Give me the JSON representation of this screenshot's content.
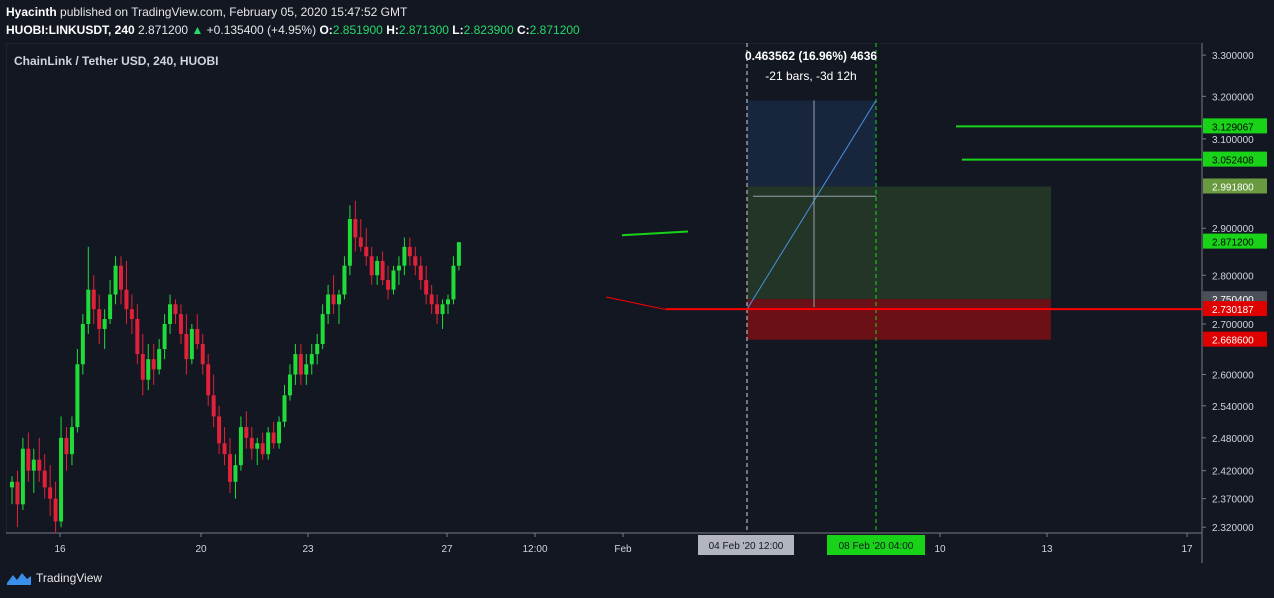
{
  "header": {
    "author": "Hyacinth",
    "published_text": " published on TradingView.com, February 05, 2020 15:47:52 GMT",
    "symbol": "HUOBI:LINKUSDT, 240",
    "last": "2.871200",
    "change_arrow": "▲",
    "change": "+0.135400 (+4.95%)",
    "o_label": "O:",
    "o_value": "2.851900",
    "h_label": "H:",
    "h_value": "2.871300",
    "l_label": "L:",
    "l_value": "2.823900",
    "c_label": "C:",
    "c_value": "2.871200"
  },
  "footer": {
    "brand": "TradingView",
    "logo_icon": "tradingview-logo-icon"
  },
  "colors": {
    "background": "#131722",
    "up": "#26a69a",
    "up_bright": "#1fdc3b",
    "down": "#e0213a",
    "level_green": "#19d319",
    "level_red": "#ff0000"
  },
  "chart_data": {
    "type": "candlestick",
    "title": "ChainLink / Tether USD, 240, HUOBI",
    "ylim": [
      2.31,
      3.33
    ],
    "y_scale": "log",
    "y_ticks": [
      "3.300000",
      "3.200000",
      "3.100000",
      "2.900000",
      "2.800000",
      "2.700000",
      "2.600000",
      "2.540000",
      "2.480000",
      "2.420000",
      "2.370000",
      "2.320000"
    ],
    "x_ticks": [
      "16",
      "20",
      "23",
      "27",
      "12:00",
      "Feb",
      "10",
      "13",
      "17"
    ],
    "x_highlight_labels": [
      "04 Feb '20   12:00",
      "08 Feb '20   04:00"
    ],
    "price_labels": [
      {
        "value": "3.129067",
        "style": "green"
      },
      {
        "value": "3.052408",
        "style": "green"
      },
      {
        "value": "2.991800",
        "style": "olive"
      },
      {
        "value": "2.871200",
        "style": "green"
      },
      {
        "value": "2.750400",
        "style": "gray"
      },
      {
        "value": "2.730187",
        "style": "red"
      },
      {
        "value": "2.668600",
        "style": "red"
      }
    ],
    "measure": {
      "text1": "0.463562 (16.96%) 4636",
      "text2": "-21 bars, -3d 12h",
      "from": 2.73,
      "to": 3.19
    },
    "position_tool": {
      "entry": 2.7504,
      "target": 2.9918,
      "stop": 2.6686,
      "upper": 3.19
    },
    "horizontal_levels": [
      {
        "value": 3.129067,
        "color": "green"
      },
      {
        "value": 3.052408,
        "color": "green"
      },
      {
        "value": 2.730187,
        "color": "red"
      }
    ],
    "candles": [
      [
        2.39,
        2.41,
        2.36,
        2.4
      ],
      [
        2.4,
        2.42,
        2.32,
        2.36
      ],
      [
        2.36,
        2.48,
        2.35,
        2.46
      ],
      [
        2.46,
        2.49,
        2.4,
        2.42
      ],
      [
        2.42,
        2.46,
        2.38,
        2.44
      ],
      [
        2.44,
        2.48,
        2.4,
        2.42
      ],
      [
        2.42,
        2.45,
        2.37,
        2.39
      ],
      [
        2.39,
        2.43,
        2.34,
        2.37
      ],
      [
        2.37,
        2.4,
        2.31,
        2.33
      ],
      [
        2.33,
        2.52,
        2.32,
        2.48
      ],
      [
        2.48,
        2.5,
        2.42,
        2.45
      ],
      [
        2.45,
        2.52,
        2.43,
        2.5
      ],
      [
        2.5,
        2.65,
        2.49,
        2.62
      ],
      [
        2.62,
        2.72,
        2.6,
        2.7
      ],
      [
        2.7,
        2.86,
        2.68,
        2.77
      ],
      [
        2.77,
        2.8,
        2.7,
        2.73
      ],
      [
        2.73,
        2.76,
        2.66,
        2.69
      ],
      [
        2.69,
        2.73,
        2.65,
        2.71
      ],
      [
        2.71,
        2.79,
        2.7,
        2.76
      ],
      [
        2.76,
        2.84,
        2.74,
        2.82
      ],
      [
        2.82,
        2.84,
        2.74,
        2.77
      ],
      [
        2.77,
        2.83,
        2.7,
        2.73
      ],
      [
        2.73,
        2.76,
        2.68,
        2.71
      ],
      [
        2.71,
        2.74,
        2.62,
        2.64
      ],
      [
        2.64,
        2.68,
        2.56,
        2.59
      ],
      [
        2.59,
        2.66,
        2.57,
        2.63
      ],
      [
        2.63,
        2.66,
        2.58,
        2.61
      ],
      [
        2.61,
        2.67,
        2.6,
        2.65
      ],
      [
        2.65,
        2.72,
        2.63,
        2.7
      ],
      [
        2.7,
        2.76,
        2.68,
        2.74
      ],
      [
        2.74,
        2.75,
        2.7,
        2.72
      ],
      [
        2.72,
        2.74,
        2.66,
        2.68
      ],
      [
        2.68,
        2.72,
        2.6,
        2.63
      ],
      [
        2.63,
        2.7,
        2.62,
        2.69
      ],
      [
        2.69,
        2.72,
        2.65,
        2.66
      ],
      [
        2.66,
        2.68,
        2.6,
        2.62
      ],
      [
        2.62,
        2.64,
        2.54,
        2.56
      ],
      [
        2.56,
        2.6,
        2.5,
        2.52
      ],
      [
        2.52,
        2.54,
        2.45,
        2.47
      ],
      [
        2.47,
        2.5,
        2.43,
        2.45
      ],
      [
        2.45,
        2.48,
        2.38,
        2.4
      ],
      [
        2.4,
        2.45,
        2.37,
        2.43
      ],
      [
        2.43,
        2.52,
        2.42,
        2.5
      ],
      [
        2.5,
        2.53,
        2.46,
        2.48
      ],
      [
        2.48,
        2.5,
        2.44,
        2.46
      ],
      [
        2.46,
        2.48,
        2.43,
        2.47
      ],
      [
        2.47,
        2.49,
        2.44,
        2.45
      ],
      [
        2.45,
        2.5,
        2.44,
        2.49
      ],
      [
        2.49,
        2.51,
        2.46,
        2.47
      ],
      [
        2.47,
        2.52,
        2.46,
        2.51
      ],
      [
        2.51,
        2.58,
        2.5,
        2.56
      ],
      [
        2.56,
        2.62,
        2.55,
        2.6
      ],
      [
        2.6,
        2.66,
        2.58,
        2.64
      ],
      [
        2.64,
        2.66,
        2.58,
        2.6
      ],
      [
        2.6,
        2.64,
        2.58,
        2.62
      ],
      [
        2.62,
        2.66,
        2.6,
        2.64
      ],
      [
        2.64,
        2.68,
        2.62,
        2.66
      ],
      [
        2.66,
        2.74,
        2.65,
        2.72
      ],
      [
        2.72,
        2.78,
        2.7,
        2.76
      ],
      [
        2.76,
        2.8,
        2.72,
        2.74
      ],
      [
        2.74,
        2.77,
        2.7,
        2.76
      ],
      [
        2.76,
        2.84,
        2.75,
        2.82
      ],
      [
        2.82,
        2.95,
        2.8,
        2.92
      ],
      [
        2.92,
        2.96,
        2.85,
        2.88
      ],
      [
        2.88,
        2.92,
        2.85,
        2.86
      ],
      [
        2.86,
        2.9,
        2.82,
        2.84
      ],
      [
        2.84,
        2.86,
        2.78,
        2.8
      ],
      [
        2.8,
        2.84,
        2.78,
        2.83
      ],
      [
        2.83,
        2.85,
        2.78,
        2.79
      ],
      [
        2.79,
        2.82,
        2.75,
        2.77
      ],
      [
        2.77,
        2.82,
        2.76,
        2.81
      ],
      [
        2.81,
        2.84,
        2.78,
        2.82
      ],
      [
        2.82,
        2.88,
        2.8,
        2.86
      ],
      [
        2.86,
        2.88,
        2.82,
        2.84
      ],
      [
        2.84,
        2.86,
        2.8,
        2.82
      ],
      [
        2.82,
        2.84,
        2.77,
        2.79
      ],
      [
        2.79,
        2.82,
        2.74,
        2.76
      ],
      [
        2.76,
        2.78,
        2.72,
        2.74
      ],
      [
        2.74,
        2.76,
        2.7,
        2.72
      ],
      [
        2.72,
        2.75,
        2.69,
        2.74
      ],
      [
        2.74,
        2.76,
        2.72,
        2.75
      ],
      [
        2.75,
        2.84,
        2.74,
        2.82
      ],
      [
        2.82,
        2.87,
        2.81,
        2.87
      ]
    ]
  }
}
